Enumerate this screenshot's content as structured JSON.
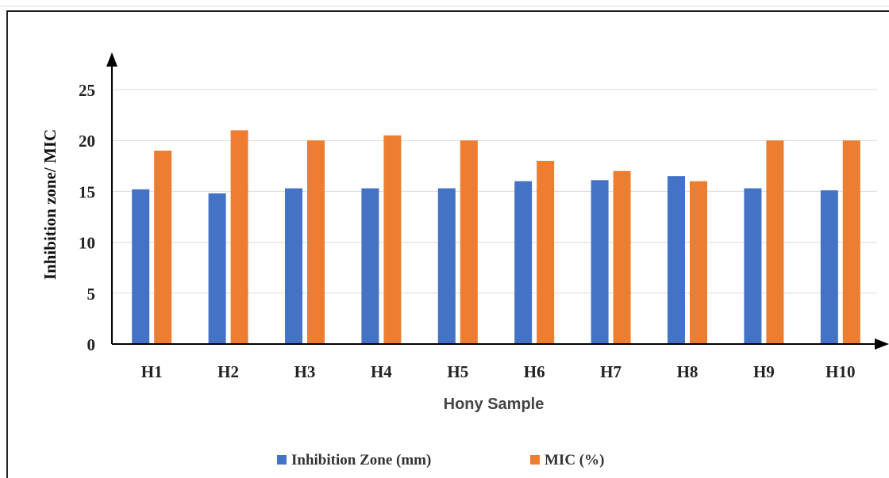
{
  "chart_data": {
    "type": "bar",
    "categories": [
      "H1",
      "H2",
      "H3",
      "H4",
      "H5",
      "H6",
      "H7",
      "H8",
      "H9",
      "H10"
    ],
    "series": [
      {
        "name": "Inhibition Zone (mm)",
        "color": "#4472C4",
        "values": [
          15.2,
          14.8,
          15.3,
          15.3,
          15.3,
          16.0,
          16.1,
          16.5,
          15.3,
          15.1
        ]
      },
      {
        "name": "MIC (%)",
        "color": "#ED7D31",
        "values": [
          19.0,
          21.0,
          20.0,
          20.5,
          20.0,
          18.0,
          17.0,
          16.0,
          20.0,
          20.0
        ]
      }
    ],
    "xlabel": "Hony Sample",
    "ylabel": "Inhibition zone/ MIC",
    "ylim": [
      0,
      25
    ],
    "yticks": [
      "0",
      "5",
      "10",
      "15",
      "20",
      "25"
    ],
    "grid": true,
    "legend_position": "bottom"
  }
}
